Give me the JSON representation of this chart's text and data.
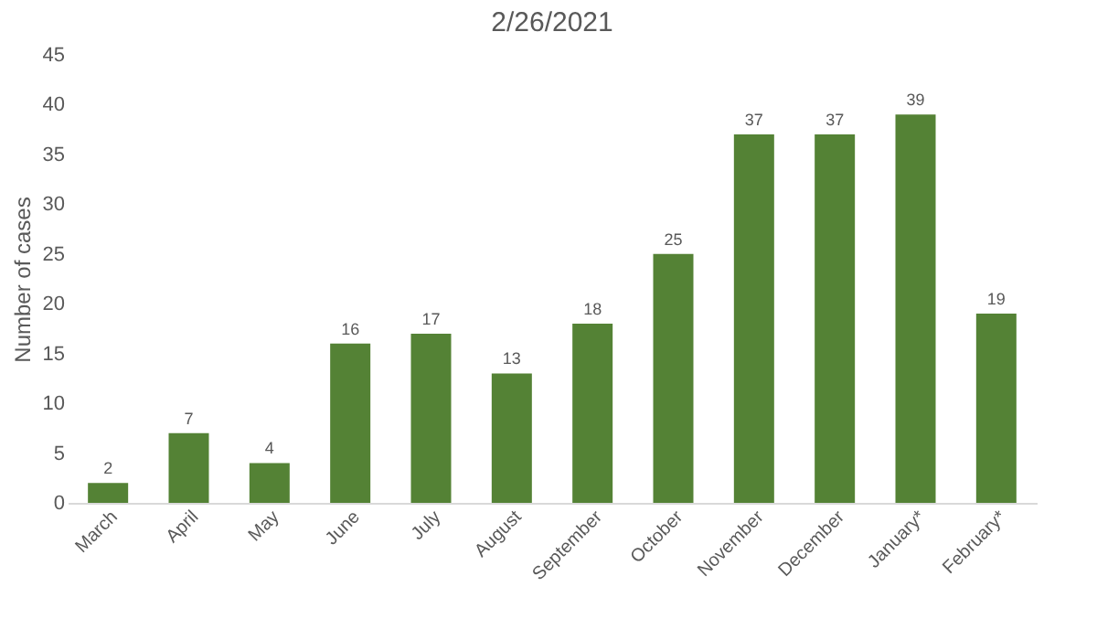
{
  "chart_data": {
    "type": "bar",
    "title": "2/26/2021",
    "ylabel": "Number of cases",
    "categories": [
      "March",
      "April",
      "May",
      "June",
      "July",
      "August",
      "September",
      "October",
      "November",
      "December",
      "January*",
      "February*"
    ],
    "values": [
      2,
      7,
      4,
      16,
      17,
      13,
      18,
      25,
      37,
      37,
      39,
      19
    ],
    "color": "#548235",
    "ylim": [
      0,
      45
    ],
    "yticks": [
      0,
      5,
      10,
      15,
      20,
      25,
      30,
      35,
      40,
      45
    ],
    "grid": false,
    "data_labels": true
  }
}
